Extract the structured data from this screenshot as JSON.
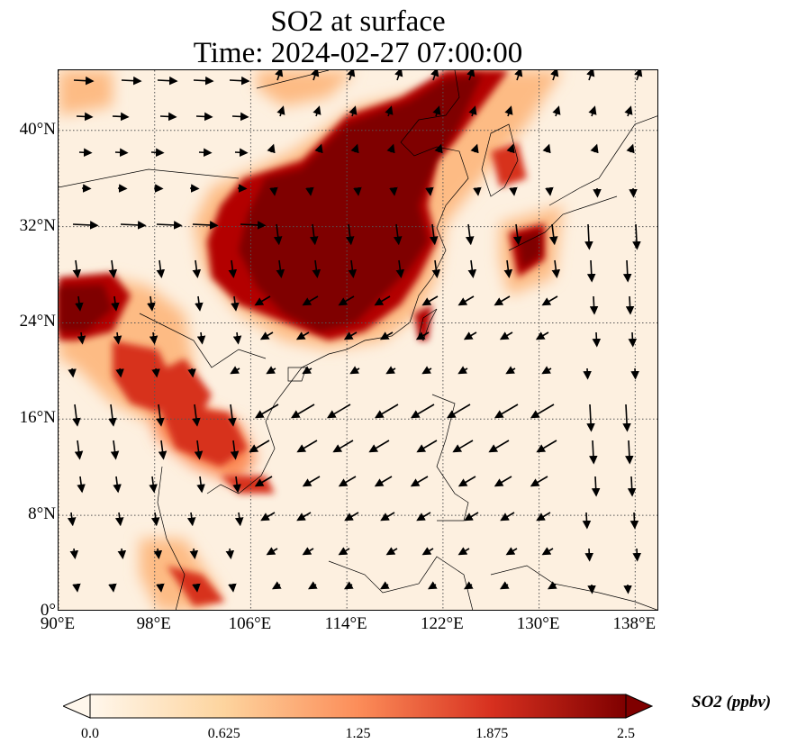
{
  "title_line1": "SO2 at surface",
  "title_line2": "Time: 2024-02-27 07:00:00",
  "map": {
    "lon_range": [
      90,
      140
    ],
    "lat_range": [
      0,
      45
    ],
    "lat_ticks": [
      {
        "value": 0,
        "label": "0°"
      },
      {
        "value": 8,
        "label": "8°N"
      },
      {
        "value": 16,
        "label": "16°N"
      },
      {
        "value": 24,
        "label": "24°N"
      },
      {
        "value": 32,
        "label": "32°N"
      },
      {
        "value": 40,
        "label": "40°N"
      }
    ],
    "lon_ticks": [
      {
        "value": 90,
        "label": "90°E"
      },
      {
        "value": 98,
        "label": "98°E"
      },
      {
        "value": 106,
        "label": "106°E"
      },
      {
        "value": 114,
        "label": "114°E"
      },
      {
        "value": 122,
        "label": "122°E"
      },
      {
        "value": 130,
        "label": "130°E"
      },
      {
        "value": 138,
        "label": "138°E"
      }
    ],
    "gridlines": true,
    "colormap": "OrRd"
  },
  "colorbar": {
    "title": "SO2 (ppbv)",
    "min": 0.0,
    "max": 2.5,
    "ticks": [
      "0.0",
      "0.625",
      "1.25",
      "1.875",
      "2.5"
    ],
    "extend": "both",
    "colors": [
      "#fff7ec",
      "#fdd49e",
      "#fc8d59",
      "#d7301f",
      "#7f0000"
    ]
  }
}
